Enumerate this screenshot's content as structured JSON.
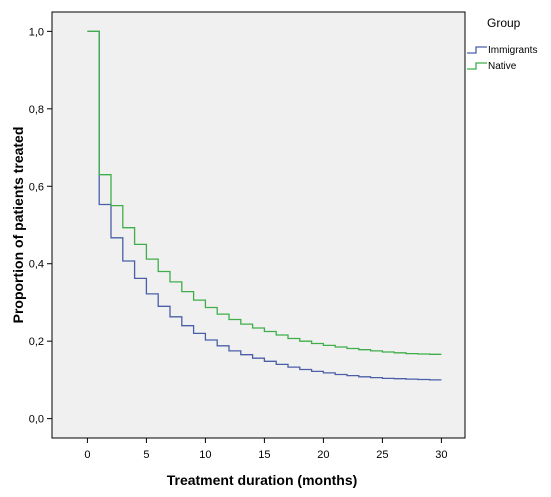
{
  "chart_data": {
    "type": "line",
    "step": true,
    "xlabel": "Treatment duration (months)",
    "ylabel": "Proportion of patients treated",
    "xlim": [
      -3,
      32
    ],
    "ylim": [
      -0.05,
      1.05
    ],
    "xticks": [
      0,
      5,
      10,
      15,
      20,
      25,
      30
    ],
    "xtick_labels": [
      "0",
      "5",
      "10",
      "15",
      "20",
      "25",
      "30"
    ],
    "yticks": [
      0.0,
      0.2,
      0.4,
      0.6,
      0.8,
      1.0
    ],
    "ytick_labels": [
      "0,0",
      "0,2",
      "0,4",
      "0,6",
      "0,8",
      "1,0"
    ],
    "plot_background": "#f0f0f0",
    "grid": false,
    "legend": {
      "title": "Group",
      "placement": "right"
    },
    "series": [
      {
        "name": "Immigrants",
        "color": "#4a5fa8",
        "x": [
          0,
          1,
          2,
          3,
          4,
          5,
          6,
          7,
          8,
          9,
          10,
          11,
          12,
          13,
          14,
          15,
          16,
          17,
          18,
          19,
          20,
          21,
          22,
          23,
          24,
          25,
          26,
          27,
          28,
          29,
          30
        ],
        "y": [
          1.0,
          0.553,
          0.467,
          0.407,
          0.362,
          0.322,
          0.29,
          0.263,
          0.24,
          0.22,
          0.203,
          0.188,
          0.175,
          0.165,
          0.156,
          0.148,
          0.14,
          0.133,
          0.127,
          0.122,
          0.118,
          0.114,
          0.111,
          0.108,
          0.106,
          0.104,
          0.103,
          0.102,
          0.101,
          0.1,
          0.1
        ]
      },
      {
        "name": "Native",
        "color": "#3fae49",
        "x": [
          0,
          1,
          2,
          3,
          4,
          5,
          6,
          7,
          8,
          9,
          10,
          11,
          12,
          13,
          14,
          15,
          16,
          17,
          18,
          19,
          20,
          21,
          22,
          23,
          24,
          25,
          26,
          27,
          28,
          29,
          30
        ],
        "y": [
          1.0,
          0.63,
          0.55,
          0.493,
          0.45,
          0.412,
          0.38,
          0.353,
          0.328,
          0.306,
          0.287,
          0.27,
          0.256,
          0.244,
          0.234,
          0.225,
          0.216,
          0.207,
          0.2,
          0.194,
          0.189,
          0.185,
          0.181,
          0.178,
          0.175,
          0.172,
          0.17,
          0.168,
          0.167,
          0.166,
          0.166
        ]
      }
    ]
  }
}
